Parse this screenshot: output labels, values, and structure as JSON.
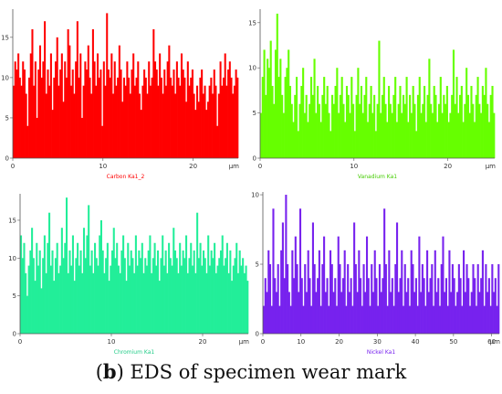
{
  "caption": {
    "letter": "b",
    "text": "EDS of specimen wear mark",
    "open": "(",
    "close": ")"
  },
  "chart_data": [
    {
      "type": "bar",
      "label": "Carbon Ka1_2",
      "color": "#ff0000",
      "label_color": "#ff0000",
      "x_unit": "μm",
      "xlim": [
        0,
        25
      ],
      "ylim": [
        0,
        18.5
      ],
      "xticks": [
        0,
        10,
        20
      ],
      "yticks": [
        0,
        5,
        10,
        15
      ],
      "values": [
        9,
        12,
        11,
        13,
        10,
        9,
        12,
        11,
        8,
        4,
        10,
        13,
        16,
        9,
        12,
        5,
        11,
        14,
        10,
        12,
        17,
        8,
        11,
        9,
        13,
        6,
        10,
        12,
        15,
        9,
        11,
        13,
        7,
        12,
        10,
        16,
        14,
        9,
        11,
        8,
        12,
        17,
        10,
        13,
        5,
        9,
        12,
        11,
        14,
        10,
        8,
        16,
        12,
        9,
        13,
        10,
        11,
        4,
        12,
        9,
        18,
        11,
        10,
        13,
        8,
        12,
        9,
        10,
        14,
        11,
        7,
        10,
        9,
        12,
        10,
        8,
        11,
        13,
        9,
        10,
        12,
        8,
        6,
        9,
        11,
        10,
        8,
        12,
        9,
        10,
        16,
        12,
        11,
        9,
        13,
        10,
        8,
        11,
        9,
        12,
        14,
        10,
        9,
        11,
        8,
        12,
        10,
        9,
        13,
        11,
        10,
        7,
        12,
        9,
        10,
        11,
        8,
        6,
        9,
        7,
        10,
        11,
        8,
        9,
        6,
        7,
        9,
        10,
        8,
        11,
        9,
        4,
        8,
        12,
        9,
        10,
        13,
        9,
        11,
        12,
        10,
        8,
        9,
        11,
        10
      ]
    },
    {
      "type": "bar",
      "label": "Vanadium Ka1",
      "color": "#66ff00",
      "label_color": "#44cc00",
      "x_unit": "μm",
      "xlim": [
        0,
        25
      ],
      "ylim": [
        0,
        16.5
      ],
      "xticks": [
        0,
        10,
        20
      ],
      "yticks": [
        0,
        5,
        10,
        15
      ],
      "values": [
        5,
        9,
        12,
        7,
        11,
        10,
        13,
        8,
        6,
        12,
        16,
        9,
        11,
        7,
        5,
        9,
        10,
        12,
        8,
        6,
        4,
        7,
        9,
        3,
        6,
        8,
        10,
        5,
        7,
        4,
        6,
        9,
        7,
        11,
        5,
        8,
        6,
        4,
        7,
        9,
        6,
        8,
        5,
        3,
        7,
        6,
        8,
        10,
        5,
        7,
        9,
        6,
        4,
        8,
        7,
        5,
        9,
        6,
        3,
        7,
        10,
        6,
        8,
        5,
        7,
        9,
        4,
        6,
        8,
        5,
        7,
        3,
        6,
        13,
        5,
        7,
        9,
        6,
        4,
        8,
        6,
        5,
        7,
        9,
        4,
        6,
        8,
        5,
        7,
        6,
        9,
        4,
        7,
        5,
        8,
        6,
        3,
        7,
        9,
        5,
        6,
        8,
        4,
        7,
        11,
        6,
        5,
        8,
        7,
        4,
        6,
        9,
        5,
        7,
        6,
        8,
        4,
        5,
        7,
        12,
        6,
        9,
        5,
        7,
        8,
        4,
        6,
        10,
        7,
        5,
        8,
        6,
        4,
        7,
        9,
        6,
        5,
        8,
        7,
        10,
        6,
        4,
        7,
        8,
        5
      ]
    },
    {
      "type": "bar",
      "label": "Chromium Ka1",
      "color": "#22ee99",
      "label_color": "#22cc88",
      "x_unit": "μm",
      "xlim": [
        0,
        25
      ],
      "ylim": [
        0,
        18.5
      ],
      "xticks": [
        0,
        10,
        20
      ],
      "yticks": [
        0,
        5,
        10,
        15
      ],
      "values": [
        13,
        10,
        12,
        8,
        5,
        9,
        11,
        14,
        10,
        7,
        12,
        9,
        11,
        6,
        10,
        13,
        8,
        12,
        16,
        9,
        11,
        7,
        10,
        12,
        8,
        9,
        14,
        10,
        12,
        18,
        8,
        11,
        9,
        13,
        7,
        10,
        12,
        9,
        11,
        8,
        14,
        10,
        13,
        17,
        9,
        11,
        8,
        12,
        10,
        9,
        13,
        15,
        11,
        8,
        10,
        12,
        7,
        9,
        11,
        14,
        10,
        12,
        9,
        8,
        11,
        13,
        10,
        7,
        12,
        9,
        11,
        10,
        8,
        13,
        9,
        11,
        10,
        12,
        8,
        10,
        9,
        11,
        13,
        8,
        10,
        12,
        9,
        11,
        7,
        10,
        13,
        9,
        11,
        8,
        12,
        10,
        9,
        14,
        11,
        10,
        8,
        12,
        9,
        11,
        10,
        13,
        8,
        10,
        12,
        9,
        11,
        8,
        16,
        10,
        12,
        9,
        11,
        10,
        8,
        13,
        9,
        11,
        10,
        12,
        8,
        9,
        10,
        11,
        13,
        9,
        10,
        12,
        8,
        11,
        7,
        9,
        10,
        12,
        8,
        11,
        9,
        10,
        8,
        9,
        7
      ]
    },
    {
      "type": "bar",
      "label": "Nickel Ka1",
      "color": "#7722ee",
      "label_color": "#7722ee",
      "x_unit": "μm",
      "xlim": [
        0,
        62
      ],
      "ylim": [
        0,
        10.2
      ],
      "xticks": [
        0,
        10,
        20,
        30,
        40,
        50,
        60
      ],
      "yticks": [
        0,
        5,
        10
      ],
      "values": [
        2,
        4,
        3,
        6,
        5,
        2,
        9,
        4,
        3,
        5,
        2,
        6,
        8,
        4,
        10,
        5,
        3,
        2,
        6,
        4,
        7,
        5,
        3,
        9,
        4,
        2,
        5,
        3,
        6,
        4,
        2,
        8,
        5,
        3,
        4,
        6,
        2,
        5,
        7,
        3,
        4,
        2,
        6,
        5,
        3,
        4,
        2,
        7,
        5,
        3,
        4,
        6,
        2,
        5,
        3,
        4,
        2,
        8,
        5,
        3,
        6,
        4,
        2,
        5,
        3,
        7,
        4,
        2,
        5,
        3,
        6,
        4,
        2,
        5,
        3,
        4,
        9,
        5,
        2,
        6,
        3,
        4,
        2,
        5,
        8,
        3,
        4,
        6,
        2,
        5,
        3,
        4,
        2,
        6,
        5,
        3,
        4,
        2,
        7,
        3,
        5,
        4,
        2,
        6,
        3,
        4,
        5,
        2,
        6,
        3,
        4,
        2,
        5,
        7,
        3,
        4,
        2,
        6,
        3,
        5,
        4,
        2,
        3,
        5,
        4,
        2,
        6,
        3,
        5,
        4,
        2,
        3,
        5,
        4,
        2,
        5,
        3,
        4,
        6,
        2,
        5,
        3,
        4,
        2,
        5,
        3,
        4,
        2,
        5
      ]
    }
  ]
}
